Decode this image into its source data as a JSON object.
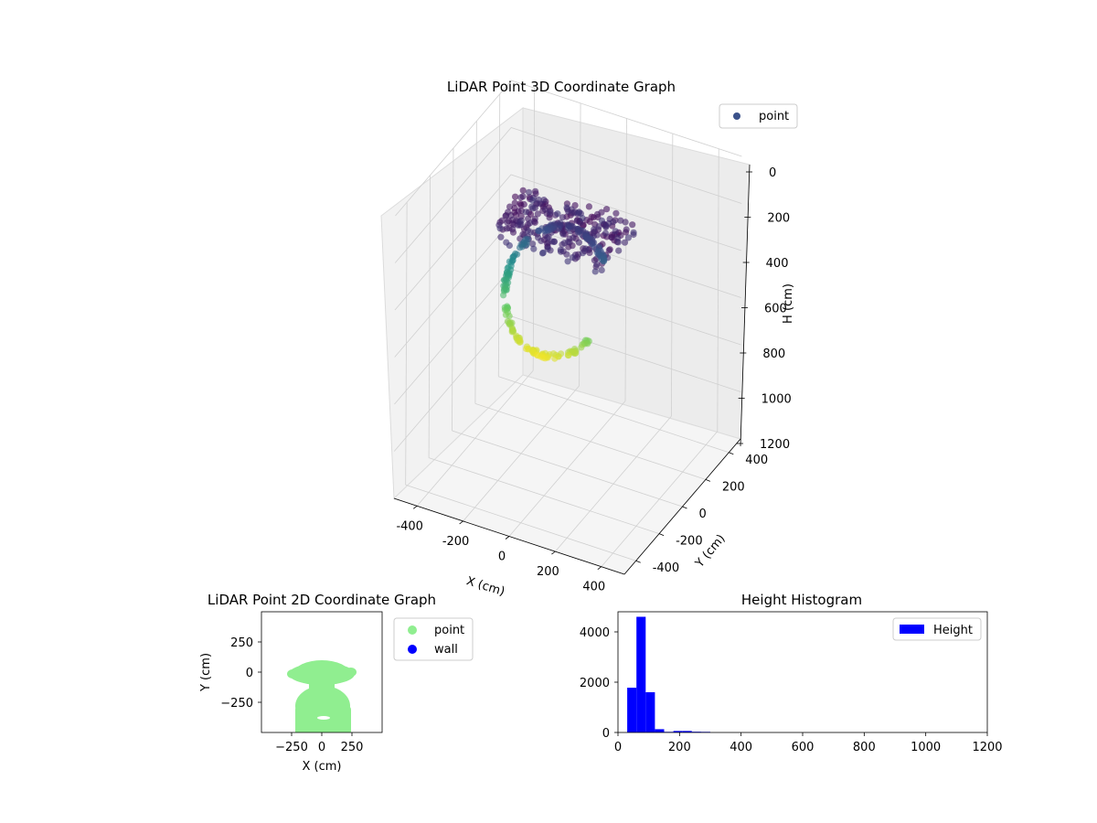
{
  "chart_data": [
    {
      "type": "scatter",
      "projection": "3d",
      "title": "LiDAR Point 3D Coordinate Graph",
      "xlabel": "X (cm)",
      "ylabel": "Y (cm)",
      "zlabel": "H (cm)",
      "xlim": [
        -500,
        500
      ],
      "ylim": [
        -500,
        500
      ],
      "zlim": [
        1200,
        0
      ],
      "xticks": [
        "-400",
        "-200",
        "0",
        "200",
        "400"
      ],
      "yticks": [
        "-400",
        "-200",
        "0",
        "200",
        "400"
      ],
      "zticks": [
        "0",
        "200",
        "400",
        "600",
        "800",
        "1000",
        "1200"
      ],
      "colormap": "viridis",
      "legend": {
        "position": "top-right",
        "entries": [
          "point"
        ]
      },
      "legend_color": "#3b528b",
      "grid": true,
      "shape": "dome of points: flat top at H≈100 cm spanning X≈-220..260, Y≈-250..100, with a curved ring of points descending to H≈550 cm"
    },
    {
      "type": "scatter",
      "title": "LiDAR Point 2D Coordinate Graph",
      "xlabel": "X (cm)",
      "ylabel": "Y (cm)",
      "xlim": [
        -500,
        500
      ],
      "ylim": [
        -500,
        500
      ],
      "xticks": [
        "−250",
        "0",
        "250"
      ],
      "yticks": [
        "250",
        "0",
        "−250"
      ],
      "series": [
        {
          "name": "point",
          "color": "#90ee90"
        },
        {
          "name": "wall",
          "color": "#0000ff"
        }
      ],
      "legend": {
        "position": "outside-right",
        "entries": [
          "point",
          "wall"
        ]
      }
    },
    {
      "type": "bar",
      "title": "Height Histogram",
      "xlim": [
        0,
        1200
      ],
      "ylim": [
        0,
        4800
      ],
      "xticks": [
        "0",
        "200",
        "400",
        "600",
        "800",
        "1000",
        "1200"
      ],
      "yticks": [
        "0",
        "2000",
        "4000"
      ],
      "bin_width": 30,
      "bins": [
        {
          "x0": 0,
          "x1": 30,
          "count": 0
        },
        {
          "x0": 30,
          "x1": 60,
          "count": 1780
        },
        {
          "x0": 60,
          "x1": 90,
          "count": 4600
        },
        {
          "x0": 90,
          "x1": 120,
          "count": 1600
        },
        {
          "x0": 120,
          "x1": 150,
          "count": 130
        },
        {
          "x0": 150,
          "x1": 180,
          "count": 25
        },
        {
          "x0": 180,
          "x1": 210,
          "count": 60
        },
        {
          "x0": 210,
          "x1": 240,
          "count": 60
        },
        {
          "x0": 240,
          "x1": 270,
          "count": 30
        },
        {
          "x0": 270,
          "x1": 300,
          "count": 25
        }
      ],
      "series": [
        {
          "name": "Height",
          "color": "#0000ff"
        }
      ],
      "legend": {
        "position": "top-right",
        "entries": [
          "Height"
        ]
      }
    }
  ]
}
